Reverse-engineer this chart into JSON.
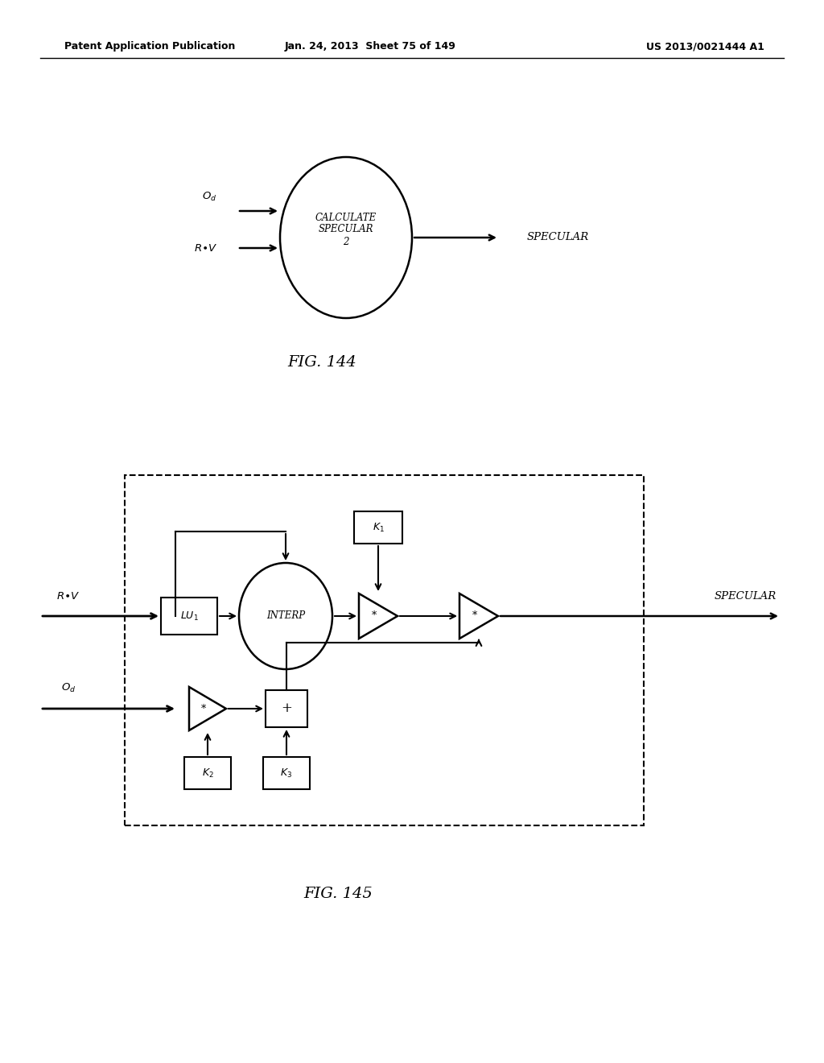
{
  "bg_color": "#ffffff",
  "header_left": "Patent Application Publication",
  "header_mid": "Jan. 24, 2013  Sheet 75 of 149",
  "header_right": "US 2013/0021444 A1",
  "fig144_caption": "FIG. 144",
  "fig145_caption": "FIG. 145"
}
